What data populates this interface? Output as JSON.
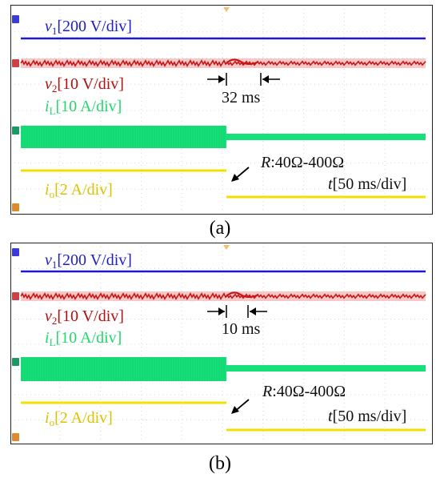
{
  "panels": [
    {
      "caption": "(a)",
      "channels": {
        "v1": {
          "symbol": "v",
          "sub": "1",
          "scale": "[200 V/div]",
          "color": "#1a1ad6"
        },
        "v2": {
          "symbol": "v",
          "sub": "2",
          "scale": "[10 V/div]",
          "color": "#c81414"
        },
        "iL": {
          "symbol": "i",
          "sub": "L",
          "scale": "[10 A/div]",
          "color": "#16e07a"
        },
        "io": {
          "symbol": "i",
          "sub": "o",
          "scale": "[2 A/div]",
          "color": "#f2e000"
        }
      },
      "time_label": {
        "symbol": "t",
        "scale": "[50 ms/div]"
      },
      "load_step": {
        "symbol": "R",
        "text": ":40Ω-400Ω"
      },
      "recovery_time": "32 ms"
    },
    {
      "caption": "(b)",
      "channels": {
        "v1": {
          "symbol": "v",
          "sub": "1",
          "scale": "[200 V/div]",
          "color": "#1a1ad6"
        },
        "v2": {
          "symbol": "v",
          "sub": "2",
          "scale": "[10 V/div]",
          "color": "#c81414"
        },
        "iL": {
          "symbol": "i",
          "sub": "L",
          "scale": "[10 A/div]",
          "color": "#16e07a"
        },
        "io": {
          "symbol": "i",
          "sub": "o",
          "scale": "[2 A/div]",
          "color": "#f2e000"
        }
      },
      "time_label": {
        "symbol": "t",
        "scale": "[50 ms/div]"
      },
      "load_step": {
        "symbol": "R",
        "text": ":40Ω-400Ω"
      },
      "recovery_time": "10 ms"
    }
  ],
  "chart_data": [
    {
      "type": "line",
      "title": "",
      "xlabel": "t[50 ms/div]",
      "time_per_div_ms": 50,
      "xlim_div": [
        0,
        10
      ],
      "step_time_div": 5,
      "series": [
        {
          "name": "v1[200 V/div]",
          "color": "#1a1ad6",
          "level_div_before": 3.3,
          "level_div_after": 3.3
        },
        {
          "name": "v2[10 V/div]",
          "color": "#c81414",
          "level_div_before": 2.1,
          "level_div_after": 2.1,
          "recovery_ms": 32
        },
        {
          "name": "iL[10 A/div]",
          "color": "#16e07a",
          "band_div_before": [
            0.7,
            -0.3
          ],
          "band_div_after": [
            0.0,
            -0.15
          ]
        },
        {
          "name": "io[2 A/div]",
          "color": "#f2e000",
          "level_div_before": -0.8,
          "level_div_after": -1.6
        }
      ],
      "annotation": "R:40Ω-400Ω",
      "grid": true
    },
    {
      "type": "line",
      "title": "",
      "xlabel": "t[50 ms/div]",
      "time_per_div_ms": 50,
      "xlim_div": [
        0,
        10
      ],
      "step_time_div": 5,
      "series": [
        {
          "name": "v1[200 V/div]",
          "color": "#1a1ad6",
          "level_div_before": 3.3,
          "level_div_after": 3.3
        },
        {
          "name": "v2[10 V/div]",
          "color": "#c81414",
          "level_div_before": 2.1,
          "level_div_after": 2.1,
          "recovery_ms": 10
        },
        {
          "name": "iL[10 A/div]",
          "color": "#16e07a",
          "band_div_before": [
            0.7,
            -0.3
          ],
          "band_div_after": [
            0.0,
            -0.15
          ]
        },
        {
          "name": "io[2 A/div]",
          "color": "#f2e000",
          "level_div_before": -0.8,
          "level_div_after": -1.6
        }
      ],
      "annotation": "R:40Ω-400Ω",
      "grid": true
    }
  ]
}
